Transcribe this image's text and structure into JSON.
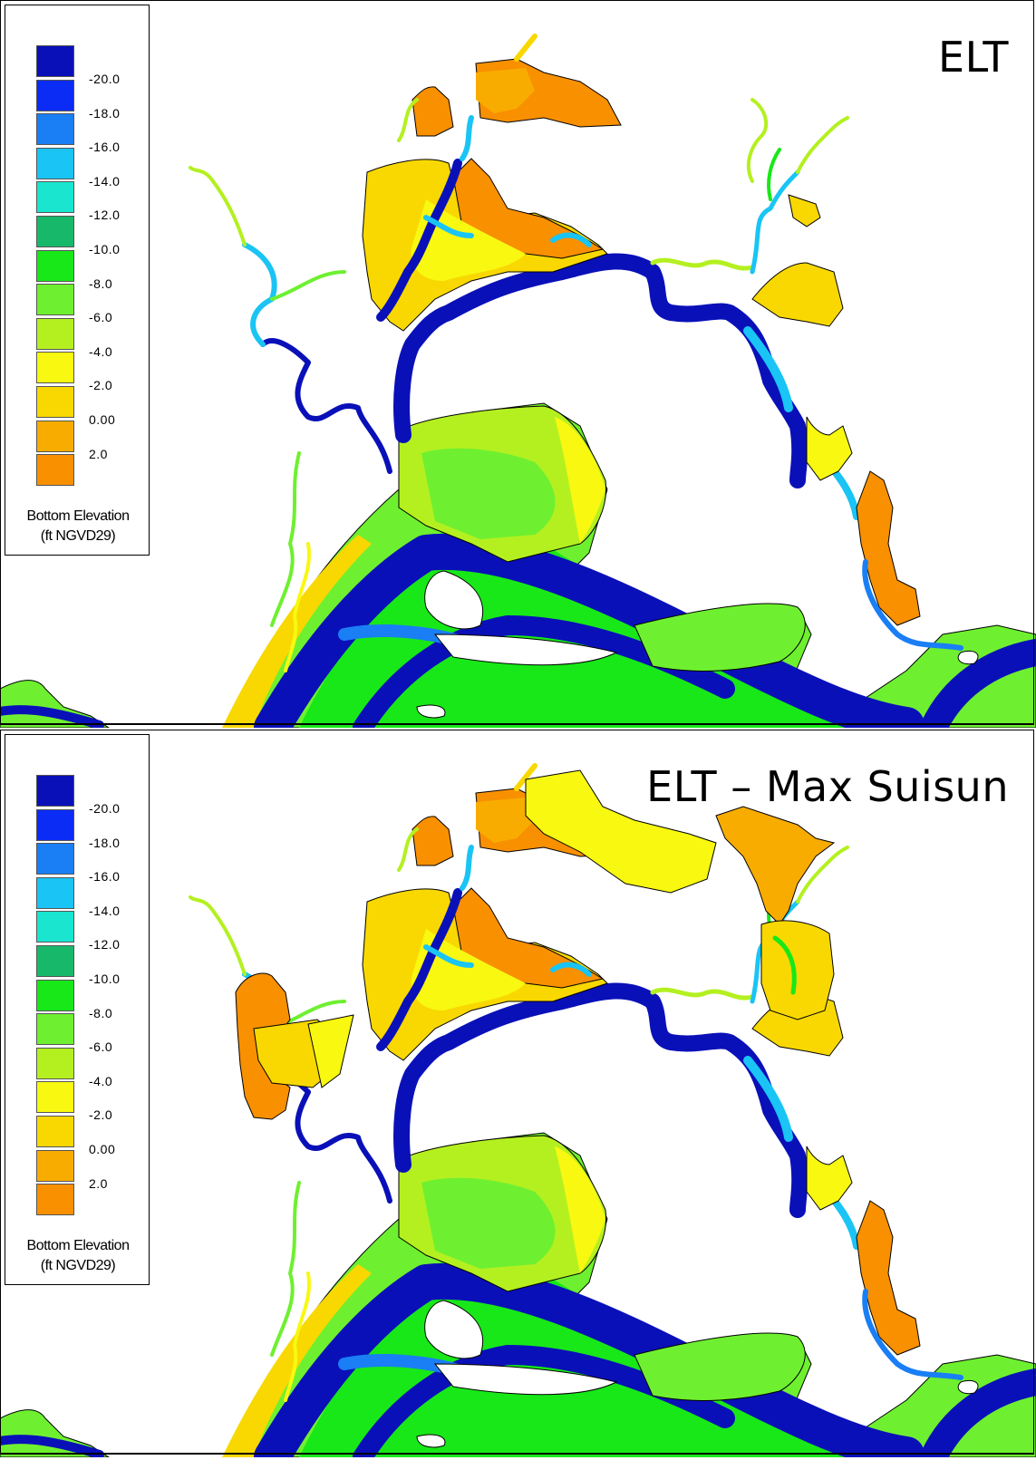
{
  "panels": [
    {
      "title": "ELT",
      "variant": "base"
    },
    {
      "title": "ELT – Max Suisun",
      "variant": "max"
    }
  ],
  "legend": {
    "title_line1": "Bottom Elevation",
    "title_line2": "(ft NGVD29)",
    "entries": [
      {
        "label": "-20.0",
        "color": "#0a10b8"
      },
      {
        "label": "-18.0",
        "color": "#0a2cf5"
      },
      {
        "label": "-16.0",
        "color": "#1a7ef5"
      },
      {
        "label": "-14.0",
        "color": "#1ac4f5"
      },
      {
        "label": "-12.0",
        "color": "#1ae6d0"
      },
      {
        "label": "-10.0",
        "color": "#18b86a"
      },
      {
        "label": "-8.0",
        "color": "#18e818"
      },
      {
        "label": "-6.0",
        "color": "#6ef030"
      },
      {
        "label": "-4.0",
        "color": "#b4f020"
      },
      {
        "label": "-2.0",
        "color": "#f8f810"
      },
      {
        "label": "0.00",
        "color": "#f8d800"
      },
      {
        "label": "2.0",
        "color": "#f8ac00"
      },
      {
        "label": "",
        "color": "#f89000"
      }
    ]
  },
  "colors": {
    "deep_channel": "#0a10b8",
    "channel": "#1a7ef5",
    "light_channel": "#1ac4f5",
    "green": "#18e818",
    "light_green": "#6ef030",
    "yellow_green": "#b4f020",
    "yellow": "#f8f810",
    "gold": "#f8d800",
    "orange": "#f8ac00",
    "dark_orange": "#f89000"
  }
}
